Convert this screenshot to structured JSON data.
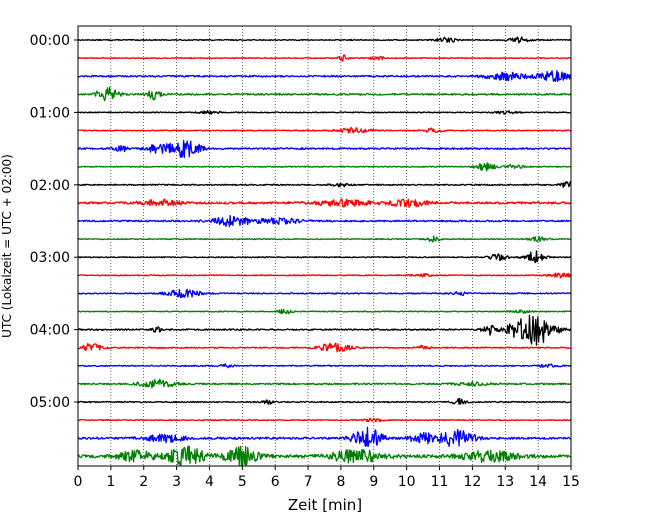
{
  "chart_data": {
    "type": "line",
    "title": "",
    "xlabel": "Zeit  [min]",
    "ylabel": "UTC (Lokalzeit = UTC + 02:00)",
    "xlim": [
      0,
      15
    ],
    "x_ticks": [
      "0",
      "1",
      "2",
      "3",
      "4",
      "5",
      "6",
      "7",
      "8",
      "9",
      "10",
      "11",
      "12",
      "13",
      "14",
      "15"
    ],
    "y_ticks": [
      "00:00",
      "01:00",
      "02:00",
      "03:00",
      "04:00",
      "05:00"
    ],
    "grid": "vertical dotted",
    "trace_interval_min": 15,
    "trace_colors": [
      "#000000",
      "#ff0000",
      "#0000ff",
      "#008000"
    ],
    "traces": [
      {
        "start": "00:00",
        "color": "#000000",
        "base_amp": 0.5,
        "events": [
          {
            "t": 11.2,
            "amp": 2.5,
            "width": 0.3
          },
          {
            "t": 13.4,
            "amp": 3,
            "width": 0.3
          }
        ]
      },
      {
        "start": "00:15",
        "color": "#ff0000",
        "base_amp": 0.5,
        "events": [
          {
            "t": 8.1,
            "amp": 3,
            "width": 0.15
          },
          {
            "t": 9.1,
            "amp": 2.5,
            "width": 0.2
          }
        ]
      },
      {
        "start": "00:30",
        "color": "#0000ff",
        "base_amp": 0.8,
        "events": [
          {
            "t": 13.0,
            "amp": 4,
            "width": 0.6
          },
          {
            "t": 14.5,
            "amp": 5,
            "width": 0.5
          }
        ]
      },
      {
        "start": "00:45",
        "color": "#008000",
        "base_amp": 0.8,
        "events": [
          {
            "t": 0.9,
            "amp": 7,
            "width": 0.3
          },
          {
            "t": 2.3,
            "amp": 5,
            "width": 0.2
          }
        ]
      },
      {
        "start": "01:00",
        "color": "#000000",
        "base_amp": 0.5,
        "events": [
          {
            "t": 4.0,
            "amp": 1.5,
            "width": 0.3
          },
          {
            "t": 13.0,
            "amp": 1.5,
            "width": 0.3
          }
        ]
      },
      {
        "start": "01:15",
        "color": "#ff0000",
        "base_amp": 0.5,
        "events": [
          {
            "t": 8.4,
            "amp": 2.5,
            "width": 0.5
          },
          {
            "t": 10.8,
            "amp": 2,
            "width": 0.3
          }
        ]
      },
      {
        "start": "01:30",
        "color": "#0000ff",
        "base_amp": 0.8,
        "events": [
          {
            "t": 2.5,
            "amp": 5,
            "width": 0.4
          },
          {
            "t": 3.3,
            "amp": 9,
            "width": 0.4
          },
          {
            "t": 1.3,
            "amp": 3,
            "width": 0.2
          }
        ]
      },
      {
        "start": "01:45",
        "color": "#008000",
        "base_amp": 0.5,
        "events": [
          {
            "t": 12.4,
            "amp": 4,
            "width": 0.3
          },
          {
            "t": 13.3,
            "amp": 2,
            "width": 0.3
          }
        ]
      },
      {
        "start": "02:00",
        "color": "#000000",
        "base_amp": 0.6,
        "events": [
          {
            "t": 14.9,
            "amp": 3,
            "width": 0.2
          },
          {
            "t": 8.0,
            "amp": 1.5,
            "width": 0.3
          }
        ]
      },
      {
        "start": "02:15",
        "color": "#ff0000",
        "base_amp": 1.0,
        "events": [
          {
            "t": 2.5,
            "amp": 3,
            "width": 0.6
          },
          {
            "t": 8.0,
            "amp": 3,
            "width": 0.8
          },
          {
            "t": 10.0,
            "amp": 3.5,
            "width": 0.6
          }
        ]
      },
      {
        "start": "02:30",
        "color": "#0000ff",
        "base_amp": 0.8,
        "events": [
          {
            "t": 4.7,
            "amp": 5,
            "width": 0.6
          },
          {
            "t": 6.2,
            "amp": 3,
            "width": 0.6
          }
        ]
      },
      {
        "start": "02:45",
        "color": "#008000",
        "base_amp": 0.5,
        "events": [
          {
            "t": 10.8,
            "amp": 2.5,
            "width": 0.2
          },
          {
            "t": 14.0,
            "amp": 2,
            "width": 0.3
          }
        ]
      },
      {
        "start": "03:00",
        "color": "#000000",
        "base_amp": 0.5,
        "events": [
          {
            "t": 12.8,
            "amp": 3,
            "width": 0.3
          },
          {
            "t": 13.9,
            "amp": 6,
            "width": 0.3
          }
        ]
      },
      {
        "start": "03:15",
        "color": "#ff0000",
        "base_amp": 0.5,
        "events": [
          {
            "t": 14.7,
            "amp": 2.5,
            "width": 0.3
          },
          {
            "t": 10.5,
            "amp": 1.5,
            "width": 0.3
          }
        ]
      },
      {
        "start": "03:30",
        "color": "#0000ff",
        "base_amp": 0.6,
        "events": [
          {
            "t": 3.2,
            "amp": 4,
            "width": 0.5
          },
          {
            "t": 11.6,
            "amp": 2,
            "width": 0.2
          }
        ]
      },
      {
        "start": "03:45",
        "color": "#008000",
        "base_amp": 0.5,
        "events": [
          {
            "t": 6.3,
            "amp": 2.5,
            "width": 0.2
          },
          {
            "t": 13.5,
            "amp": 1.5,
            "width": 0.3
          }
        ]
      },
      {
        "start": "04:00",
        "color": "#000000",
        "base_amp": 0.7,
        "events": [
          {
            "t": 2.4,
            "amp": 3,
            "width": 0.15
          },
          {
            "t": 12.5,
            "amp": 5,
            "width": 0.2
          },
          {
            "t": 14.0,
            "amp": 14,
            "width": 0.5
          },
          {
            "t": 13.4,
            "amp": 7,
            "width": 0.4
          }
        ]
      },
      {
        "start": "04:15",
        "color": "#ff0000",
        "base_amp": 0.6,
        "events": [
          {
            "t": 0.4,
            "amp": 4,
            "width": 0.3
          },
          {
            "t": 7.8,
            "amp": 4,
            "width": 0.5
          },
          {
            "t": 10.5,
            "amp": 2,
            "width": 0.2
          }
        ]
      },
      {
        "start": "04:30",
        "color": "#0000ff",
        "base_amp": 0.6,
        "events": [
          {
            "t": 4.5,
            "amp": 2,
            "width": 0.2
          },
          {
            "t": 14.3,
            "amp": 1.5,
            "width": 0.3
          }
        ]
      },
      {
        "start": "04:45",
        "color": "#008000",
        "base_amp": 0.8,
        "events": [
          {
            "t": 2.4,
            "amp": 4,
            "width": 0.5
          },
          {
            "t": 12.0,
            "amp": 1.5,
            "width": 0.5
          }
        ]
      },
      {
        "start": "05:00",
        "color": "#000000",
        "base_amp": 0.6,
        "events": [
          {
            "t": 5.8,
            "amp": 2,
            "width": 0.2
          },
          {
            "t": 11.6,
            "amp": 3,
            "width": 0.2
          }
        ]
      },
      {
        "start": "05:15",
        "color": "#ff0000",
        "base_amp": 0.5,
        "events": [
          {
            "t": 9.0,
            "amp": 1.5,
            "width": 0.3
          }
        ]
      },
      {
        "start": "05:30",
        "color": "#0000ff",
        "base_amp": 1.0,
        "events": [
          {
            "t": 2.6,
            "amp": 4,
            "width": 0.6
          },
          {
            "t": 8.8,
            "amp": 12,
            "width": 0.4
          },
          {
            "t": 11.5,
            "amp": 10,
            "width": 0.5
          },
          {
            "t": 10.5,
            "amp": 5,
            "width": 0.4
          }
        ]
      },
      {
        "start": "05:45",
        "color": "#008000",
        "base_amp": 1.5,
        "events": [
          {
            "t": 3.3,
            "amp": 10,
            "width": 0.5
          },
          {
            "t": 5.0,
            "amp": 9,
            "width": 0.5
          },
          {
            "t": 1.8,
            "amp": 5,
            "width": 0.6
          },
          {
            "t": 8.5,
            "amp": 6,
            "width": 0.8
          },
          {
            "t": 12.5,
            "amp": 5,
            "width": 0.8
          }
        ]
      }
    ]
  }
}
